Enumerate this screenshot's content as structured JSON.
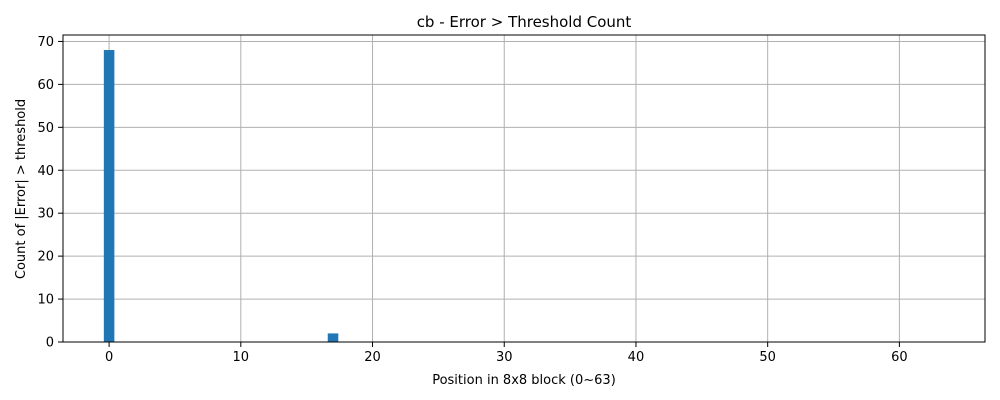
{
  "chart_data": {
    "type": "bar",
    "title": "cb - Error > Threshold Count",
    "xlabel": "Position in 8x8 block (0~63)",
    "ylabel": "Count of |Error| > threshold",
    "xlim": [
      -3.5,
      66.5
    ],
    "ylim": [
      0,
      71.5
    ],
    "xticks": [
      0,
      10,
      20,
      30,
      40,
      50,
      60
    ],
    "yticks": [
      0,
      10,
      20,
      30,
      40,
      50,
      60,
      70
    ],
    "grid": true,
    "bar_width": 0.8,
    "series": [
      {
        "color": "#1f77b4",
        "points": [
          {
            "x": 0,
            "y": 68
          },
          {
            "x": 17,
            "y": 2
          }
        ]
      }
    ]
  }
}
